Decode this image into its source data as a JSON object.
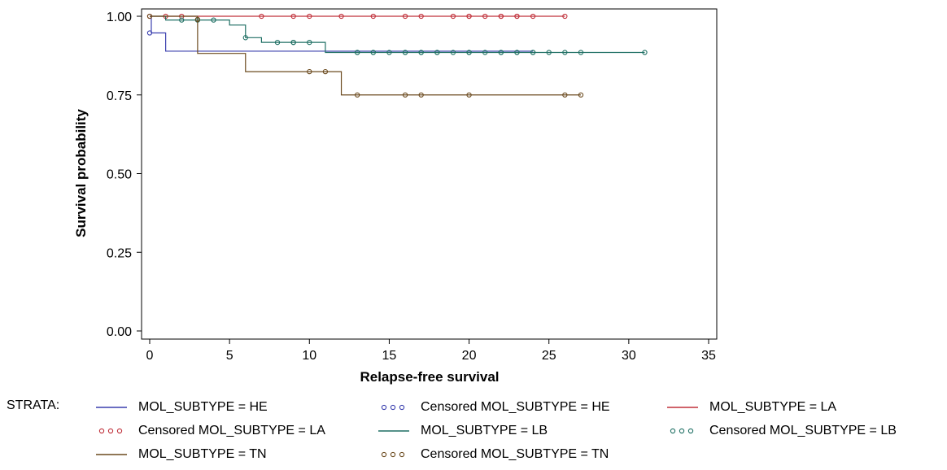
{
  "chart_data": {
    "type": "line",
    "subtype": "kaplan-meier step plot with censoring marks",
    "xlabel": "Relapse-free survival",
    "ylabel": "Survival probability",
    "xlim": [
      0,
      35
    ],
    "ylim": [
      0,
      1
    ],
    "xticks": [
      "0",
      "5",
      "10",
      "15",
      "20",
      "25",
      "30",
      "35"
    ],
    "yticks": [
      "0.00",
      "0.25",
      "0.50",
      "0.75",
      "1.00"
    ],
    "grid": false,
    "legend_position": "bottom",
    "legend_title": "STRATA:",
    "series": [
      {
        "name": "MOL_SUBTYPE = HE",
        "color": "#3a3fae",
        "steps": [
          [
            0,
            1.0
          ],
          [
            0.1,
            0.947
          ],
          [
            1,
            0.889
          ],
          [
            24,
            0.889
          ]
        ],
        "censored": [
          [
            0,
            0.947
          ]
        ]
      },
      {
        "name": "MOL_SUBTYPE = LA",
        "color": "#c0303a",
        "steps": [
          [
            0,
            1.0
          ],
          [
            26,
            1.0
          ]
        ],
        "censored": [
          [
            0,
            1.0
          ],
          [
            1,
            1.0
          ],
          [
            2,
            1.0
          ],
          [
            7,
            1.0
          ],
          [
            9,
            1.0
          ],
          [
            10,
            1.0
          ],
          [
            12,
            1.0
          ],
          [
            14,
            1.0
          ],
          [
            16,
            1.0
          ],
          [
            17,
            1.0
          ],
          [
            19,
            1.0
          ],
          [
            20,
            1.0
          ],
          [
            20,
            1.0
          ],
          [
            21,
            1.0
          ],
          [
            22,
            1.0
          ],
          [
            22,
            1.0
          ],
          [
            23,
            1.0
          ],
          [
            23,
            1.0
          ],
          [
            24,
            1.0
          ],
          [
            26,
            1.0
          ]
        ]
      },
      {
        "name": "MOL_SUBTYPE = LB",
        "color": "#1e6f63",
        "steps": [
          [
            0,
            1.0
          ],
          [
            1,
            0.988
          ],
          [
            5,
            0.972
          ],
          [
            6,
            0.932
          ],
          [
            7,
            0.917
          ],
          [
            11,
            0.885
          ],
          [
            31,
            0.885
          ]
        ],
        "censored": [
          [
            2,
            0.988
          ],
          [
            3,
            0.988
          ],
          [
            4,
            0.988
          ],
          [
            6,
            0.932
          ],
          [
            8,
            0.917
          ],
          [
            9,
            0.917
          ],
          [
            9,
            0.917
          ],
          [
            10,
            0.917
          ],
          [
            13,
            0.885
          ],
          [
            13,
            0.885
          ],
          [
            14,
            0.885
          ],
          [
            14,
            0.885
          ],
          [
            15,
            0.885
          ],
          [
            16,
            0.885
          ],
          [
            16,
            0.885
          ],
          [
            17,
            0.885
          ],
          [
            17,
            0.885
          ],
          [
            18,
            0.885
          ],
          [
            18,
            0.885
          ],
          [
            19,
            0.885
          ],
          [
            20,
            0.885
          ],
          [
            20,
            0.885
          ],
          [
            21,
            0.885
          ],
          [
            22,
            0.885
          ],
          [
            22,
            0.885
          ],
          [
            23,
            0.885
          ],
          [
            23,
            0.885
          ],
          [
            24,
            0.885
          ],
          [
            24,
            0.885
          ],
          [
            25,
            0.885
          ],
          [
            26,
            0.885
          ],
          [
            27,
            0.885
          ],
          [
            31,
            0.885
          ]
        ]
      },
      {
        "name": "MOL_SUBTYPE = TN",
        "color": "#6b4a1e",
        "steps": [
          [
            0,
            1.0
          ],
          [
            3,
            0.882
          ],
          [
            6,
            0.824
          ],
          [
            12,
            0.75
          ],
          [
            27,
            0.75
          ]
        ],
        "censored": [
          [
            0,
            1.0
          ],
          [
            3,
            0.99
          ],
          [
            10,
            0.824
          ],
          [
            11,
            0.824
          ],
          [
            13,
            0.75
          ],
          [
            16,
            0.75
          ],
          [
            17,
            0.75
          ],
          [
            20,
            0.75
          ],
          [
            26,
            0.75
          ],
          [
            27,
            0.75
          ]
        ]
      }
    ]
  },
  "legend": {
    "title": "STRATA:",
    "items": [
      {
        "label": "MOL_SUBTYPE = HE",
        "kind": "line",
        "color": "#3a3fae"
      },
      {
        "label": "Censored MOL_SUBTYPE = HE",
        "kind": "marker",
        "color": "#3a3fae"
      },
      {
        "label": "MOL_SUBTYPE = LA",
        "kind": "line",
        "color": "#c0303a"
      },
      {
        "label": "Censored MOL_SUBTYPE = LA",
        "kind": "marker",
        "color": "#c0303a"
      },
      {
        "label": "MOL_SUBTYPE = LB",
        "kind": "line",
        "color": "#1e6f63"
      },
      {
        "label": "Censored MOL_SUBTYPE = LB",
        "kind": "marker",
        "color": "#1e6f63"
      },
      {
        "label": "MOL_SUBTYPE = TN",
        "kind": "line",
        "color": "#6b4a1e"
      },
      {
        "label": "Censored MOL_SUBTYPE = TN",
        "kind": "marker",
        "color": "#6b4a1e"
      }
    ]
  }
}
